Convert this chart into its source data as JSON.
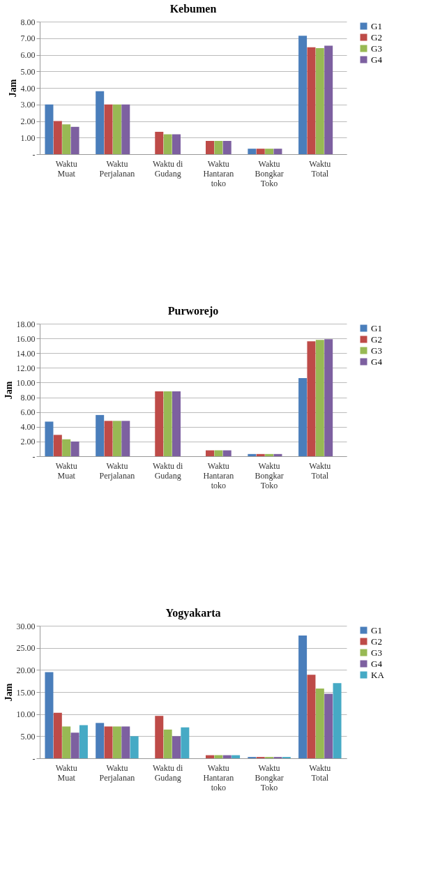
{
  "chart_data": [
    {
      "type": "bar",
      "title": "Kebumen",
      "ylabel": "Jam",
      "categories": [
        "Waktu Muat",
        "Waktu Perjalanan",
        "Waktu di Gudang",
        "Waktu Hantaran toko",
        "Waktu Bongkar Toko",
        "Waktu Total"
      ],
      "series": [
        {
          "name": "G1",
          "color": "#4a7ebb",
          "values": [
            3.0,
            3.8,
            null,
            null,
            0.33,
            7.15
          ]
        },
        {
          "name": "G2",
          "color": "#be4b48",
          "values": [
            2.0,
            3.0,
            1.35,
            0.8,
            0.33,
            6.45
          ]
        },
        {
          "name": "G3",
          "color": "#98b954",
          "values": [
            1.8,
            3.0,
            1.2,
            0.8,
            0.33,
            6.4
          ]
        },
        {
          "name": "G4",
          "color": "#7d60a0",
          "values": [
            1.65,
            3.0,
            1.2,
            0.8,
            0.33,
            6.55
          ]
        }
      ],
      "ylim": [
        0,
        8
      ],
      "yticks": [
        {
          "value": 0,
          "label": "-"
        },
        {
          "value": 1,
          "label": "1.00"
        },
        {
          "value": 2,
          "label": "2.00"
        },
        {
          "value": 3,
          "label": "3.00"
        },
        {
          "value": 4,
          "label": "4.00"
        },
        {
          "value": 5,
          "label": "5.00"
        },
        {
          "value": 6,
          "label": "6.00"
        },
        {
          "value": 7,
          "label": "7.00"
        },
        {
          "value": 8,
          "label": "8.00"
        }
      ],
      "grid": "y",
      "legend": "right"
    },
    {
      "type": "bar",
      "title": "Purworejo",
      "ylabel": "Jam",
      "categories": [
        "Waktu Muat",
        "Waktu Perjalanan",
        "Waktu di Gudang",
        "Waktu Hantaran toko",
        "Waktu Bongkar Toko",
        "Waktu Total"
      ],
      "series": [
        {
          "name": "G1",
          "color": "#4a7ebb",
          "values": [
            4.7,
            5.6,
            null,
            null,
            0.3,
            10.6
          ]
        },
        {
          "name": "G2",
          "color": "#be4b48",
          "values": [
            2.9,
            4.8,
            8.8,
            0.8,
            0.3,
            15.6
          ]
        },
        {
          "name": "G3",
          "color": "#98b954",
          "values": [
            2.3,
            4.8,
            8.8,
            0.8,
            0.3,
            15.8
          ]
        },
        {
          "name": "G4",
          "color": "#7d60a0",
          "values": [
            2.0,
            4.8,
            8.8,
            0.8,
            0.3,
            15.9
          ]
        }
      ],
      "ylim": [
        0,
        18
      ],
      "yticks": [
        {
          "value": 0,
          "label": "-"
        },
        {
          "value": 2,
          "label": "2.00"
        },
        {
          "value": 4,
          "label": "4.00"
        },
        {
          "value": 6,
          "label": "6.00"
        },
        {
          "value": 8,
          "label": "8.00"
        },
        {
          "value": 10,
          "label": "10.00"
        },
        {
          "value": 12,
          "label": "12.00"
        },
        {
          "value": 14,
          "label": "14.00"
        },
        {
          "value": 16,
          "label": "16.00"
        },
        {
          "value": 18,
          "label": "18.00"
        }
      ],
      "grid": "y",
      "legend": "right"
    },
    {
      "type": "bar",
      "title": "Yogyakarta",
      "ylabel": "Jam",
      "categories": [
        "Waktu Muat",
        "Waktu Perjalanan",
        "Waktu di Gudang",
        "Waktu Hantaran toko",
        "Waktu Bongkar Toko",
        "Waktu Total"
      ],
      "series": [
        {
          "name": "G1",
          "color": "#4a7ebb",
          "values": [
            19.5,
            8.0,
            null,
            null,
            0.3,
            27.8
          ]
        },
        {
          "name": "G2",
          "color": "#be4b48",
          "values": [
            10.3,
            7.2,
            9.6,
            0.7,
            0.3,
            18.9
          ]
        },
        {
          "name": "G3",
          "color": "#98b954",
          "values": [
            7.2,
            7.2,
            6.5,
            0.7,
            0.3,
            15.8
          ]
        },
        {
          "name": "G4",
          "color": "#7d60a0",
          "values": [
            5.8,
            7.2,
            5.0,
            0.7,
            0.3,
            14.6
          ]
        },
        {
          "name": "KA",
          "color": "#46aac5",
          "values": [
            7.5,
            5.0,
            7.0,
            0.7,
            0.3,
            17.0
          ]
        }
      ],
      "ylim": [
        0,
        30
      ],
      "yticks": [
        {
          "value": 0,
          "label": "-"
        },
        {
          "value": 5,
          "label": "5.00"
        },
        {
          "value": 10,
          "label": "10.00"
        },
        {
          "value": 15,
          "label": "15.00"
        },
        {
          "value": 20,
          "label": "20.00"
        },
        {
          "value": 25,
          "label": "25.00"
        },
        {
          "value": 30,
          "label": "30.00"
        }
      ],
      "grid": "y",
      "legend": "right"
    }
  ]
}
